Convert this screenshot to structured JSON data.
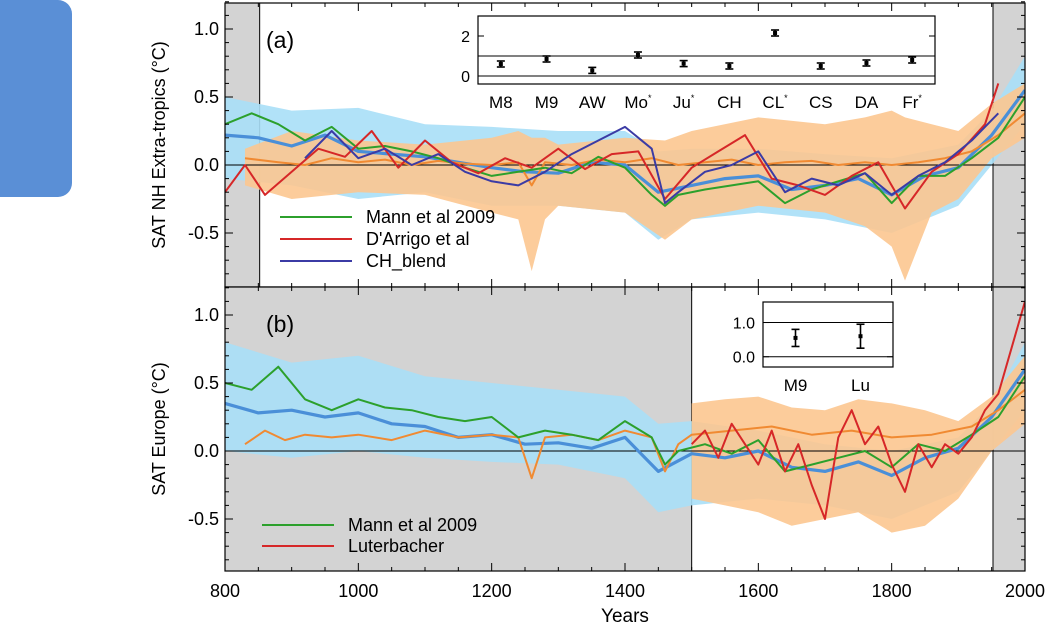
{
  "xlabel": "Years",
  "chart_data": [
    {
      "type": "line",
      "panel_label": "(a)",
      "ylabel": "SAT NH Extra-tropics (°C)",
      "xlim": [
        800,
        2000
      ],
      "ylim": [
        -0.88,
        1.2
      ],
      "xticks": [
        800,
        1000,
        1200,
        1400,
        1600,
        1800,
        2000
      ],
      "yticks": [
        1.0,
        0.5,
        0.0,
        -0.5
      ],
      "ytick_labels": [
        "1.0",
        "0.5",
        "0.0",
        "-0.5"
      ],
      "shaded_x_ranges": [
        [
          800,
          852
        ],
        [
          1952,
          2000
        ]
      ],
      "series": [
        {
          "name": "Mann et al 2009",
          "color": "#2ca02c",
          "x": [
            800,
            840,
            880,
            920,
            960,
            1000,
            1040,
            1080,
            1120,
            1160,
            1200,
            1240,
            1280,
            1320,
            1360,
            1400,
            1440,
            1460,
            1480,
            1520,
            1560,
            1600,
            1640,
            1680,
            1720,
            1760,
            1800,
            1840,
            1880,
            1920,
            1960,
            2000
          ],
          "y": [
            0.3,
            0.38,
            0.3,
            0.18,
            0.28,
            0.12,
            0.14,
            0.1,
            0.05,
            -0.02,
            -0.08,
            -0.05,
            -0.02,
            -0.06,
            0.06,
            -0.02,
            -0.22,
            -0.3,
            -0.22,
            -0.18,
            -0.15,
            -0.12,
            -0.28,
            -0.18,
            -0.12,
            -0.06,
            -0.28,
            -0.08,
            -0.08,
            0.05,
            0.2,
            0.5
          ]
        },
        {
          "name": "D'Arrigo et al",
          "color": "#d62728",
          "x": [
            800,
            830,
            860,
            900,
            940,
            980,
            1020,
            1060,
            1100,
            1140,
            1180,
            1220,
            1260,
            1300,
            1340,
            1380,
            1420,
            1460,
            1500,
            1540,
            1580,
            1620,
            1660,
            1700,
            1740,
            1780,
            1820,
            1860,
            1900,
            1940,
            1960
          ],
          "y": [
            -0.2,
            0.0,
            -0.22,
            -0.05,
            0.12,
            0.06,
            0.25,
            -0.02,
            0.18,
            0.02,
            -0.06,
            0.05,
            -0.02,
            0.12,
            -0.03,
            0.08,
            0.1,
            -0.25,
            -0.02,
            0.1,
            0.22,
            -0.1,
            -0.15,
            -0.22,
            -0.08,
            0.02,
            -0.32,
            -0.05,
            0.08,
            0.3,
            0.6
          ]
        },
        {
          "name": "CH_blend",
          "color": "#3b3ba5",
          "x": [
            920,
            960,
            1000,
            1040,
            1080,
            1120,
            1160,
            1200,
            1240,
            1280,
            1320,
            1360,
            1400,
            1440,
            1460,
            1480,
            1520,
            1560,
            1600,
            1640,
            1680,
            1720,
            1760,
            1800,
            1840,
            1880,
            1920,
            1960
          ],
          "y": [
            0.05,
            0.25,
            0.05,
            0.12,
            0.0,
            0.08,
            -0.05,
            -0.12,
            -0.15,
            -0.05,
            0.08,
            0.18,
            0.28,
            0.12,
            -0.28,
            -0.2,
            -0.05,
            0.0,
            0.1,
            -0.2,
            -0.1,
            -0.15,
            -0.06,
            -0.22,
            -0.08,
            0.02,
            0.18,
            0.38
          ]
        },
        {
          "name": "",
          "color": "#4a8fd8",
          "x": [
            800,
            850,
            900,
            950,
            1000,
            1050,
            1100,
            1150,
            1200,
            1250,
            1300,
            1350,
            1400,
            1450,
            1500,
            1550,
            1600,
            1650,
            1700,
            1750,
            1800,
            1850,
            1900,
            1950,
            2000
          ],
          "y": [
            0.22,
            0.2,
            0.14,
            0.22,
            0.1,
            0.08,
            0.06,
            0.02,
            -0.02,
            -0.05,
            -0.06,
            0.02,
            0.0,
            -0.2,
            -0.15,
            -0.1,
            -0.08,
            -0.18,
            -0.15,
            -0.1,
            -0.22,
            -0.08,
            -0.02,
            0.22,
            0.55
          ]
        },
        {
          "name": "",
          "color": "#f08a32",
          "x": [
            830,
            880,
            920,
            960,
            1000,
            1040,
            1080,
            1120,
            1160,
            1200,
            1240,
            1260,
            1280,
            1320,
            1360,
            1400,
            1440,
            1480,
            1520,
            1560,
            1600,
            1640,
            1680,
            1720,
            1760,
            1800,
            1840,
            1880,
            1920,
            1960,
            2000
          ],
          "y": [
            0.05,
            0.02,
            0.0,
            0.05,
            0.02,
            0.04,
            0.0,
            0.03,
            0.01,
            0.0,
            0.02,
            -0.15,
            0.02,
            0.0,
            0.04,
            0.02,
            0.05,
            0.0,
            0.02,
            0.04,
            0.0,
            0.02,
            0.03,
            0.0,
            0.02,
            0.0,
            0.02,
            0.05,
            0.1,
            0.22,
            0.38
          ]
        }
      ],
      "bands": [
        {
          "color": "#a9dff7",
          "x": [
            800,
            900,
            1000,
            1100,
            1200,
            1300,
            1400,
            1450,
            1500,
            1600,
            1700,
            1800,
            1900,
            1950,
            2000
          ],
          "upper": [
            0.5,
            0.4,
            0.42,
            0.3,
            0.28,
            0.25,
            0.25,
            0.1,
            0.12,
            0.12,
            0.08,
            0.05,
            0.15,
            0.4,
            0.8
          ],
          "lower": [
            -0.1,
            -0.15,
            -0.25,
            -0.2,
            -0.3,
            -0.3,
            -0.35,
            -0.55,
            -0.4,
            -0.35,
            -0.4,
            -0.5,
            -0.3,
            0.0,
            0.3
          ]
        },
        {
          "color": "#fcc690",
          "x": [
            830,
            900,
            1000,
            1100,
            1200,
            1240,
            1260,
            1280,
            1300,
            1400,
            1460,
            1500,
            1600,
            1700,
            1760,
            1800,
            1820,
            1860,
            1900,
            1950,
            2000
          ],
          "upper": [
            0.12,
            0.25,
            0.18,
            0.15,
            0.2,
            0.25,
            0.2,
            0.2,
            0.15,
            0.2,
            0.18,
            0.25,
            0.35,
            0.3,
            0.35,
            0.4,
            0.35,
            0.3,
            0.25,
            0.45,
            0.6
          ],
          "lower": [
            -0.15,
            -0.25,
            -0.2,
            -0.22,
            -0.35,
            -0.4,
            -0.78,
            -0.4,
            -0.3,
            -0.35,
            -0.55,
            -0.4,
            -0.3,
            -0.35,
            -0.45,
            -0.6,
            -0.85,
            -0.35,
            -0.25,
            0.05,
            0.2
          ]
        }
      ],
      "legend": [
        "Mann et al 2009",
        "D'Arrigo et al",
        "CH_blend"
      ],
      "inset": {
        "categories": [
          "M8",
          "M9",
          "AW",
          "Mo",
          "Ju",
          "CH",
          "CL",
          "CS",
          "DA",
          "Fr"
        ],
        "starred": [
          false,
          false,
          false,
          true,
          true,
          false,
          true,
          false,
          false,
          true
        ],
        "values": [
          0.6,
          0.85,
          0.28,
          1.05,
          0.62,
          0.5,
          2.15,
          0.5,
          0.65,
          0.8
        ],
        "errors": [
          0.15,
          0.15,
          0.15,
          0.15,
          0.15,
          0.15,
          0.15,
          0.15,
          0.15,
          0.15
        ],
        "ylim": [
          -0.4,
          3.0
        ],
        "yticks": [
          0,
          2
        ],
        "ytick_labels": [
          "0",
          "2"
        ],
        "reference_lines": [
          0,
          1
        ]
      }
    },
    {
      "type": "line",
      "panel_label": "(b)",
      "ylabel": "SAT Europe (°C)",
      "xlim": [
        800,
        2000
      ],
      "ylim": [
        -0.88,
        1.2
      ],
      "xticks": [
        800,
        1000,
        1200,
        1400,
        1600,
        1800,
        2000
      ],
      "xtick_labels": [
        "800",
        "1000",
        "1200",
        "1400",
        "1600",
        "1800",
        "2000"
      ],
      "yticks": [
        1.0,
        0.5,
        0.0,
        -0.5
      ],
      "ytick_labels": [
        "1.0",
        "0.5",
        "0.0",
        "-0.5"
      ],
      "shaded_x_ranges": [
        [
          800,
          1500
        ],
        [
          1952,
          2000
        ]
      ],
      "series": [
        {
          "name": "Mann et al 2009",
          "color": "#2ca02c",
          "x": [
            800,
            840,
            880,
            920,
            960,
            1000,
            1040,
            1080,
            1120,
            1160,
            1200,
            1240,
            1280,
            1320,
            1360,
            1400,
            1440,
            1460,
            1480,
            1520,
            1560,
            1600,
            1640,
            1680,
            1720,
            1760,
            1800,
            1840,
            1880,
            1920,
            1960,
            2000
          ],
          "y": [
            0.5,
            0.45,
            0.62,
            0.38,
            0.3,
            0.38,
            0.32,
            0.3,
            0.25,
            0.22,
            0.25,
            0.1,
            0.15,
            0.12,
            0.08,
            0.22,
            0.1,
            -0.1,
            0.0,
            0.05,
            -0.02,
            0.08,
            -0.15,
            -0.1,
            -0.05,
            0.0,
            -0.12,
            0.05,
            0.0,
            0.12,
            0.25,
            0.55
          ]
        },
        {
          "name": "Luterbacher",
          "color": "#d62728",
          "x": [
            1500,
            1520,
            1540,
            1560,
            1580,
            1600,
            1620,
            1640,
            1660,
            1680,
            1700,
            1720,
            1740,
            1760,
            1780,
            1800,
            1820,
            1840,
            1860,
            1880,
            1900,
            1920,
            1940,
            1960,
            2000
          ],
          "y": [
            0.05,
            0.15,
            -0.05,
            0.2,
            0.05,
            -0.1,
            0.15,
            -0.15,
            0.05,
            -0.25,
            -0.5,
            0.1,
            0.3,
            0.05,
            0.18,
            -0.1,
            -0.3,
            0.05,
            -0.12,
            0.05,
            -0.02,
            0.1,
            0.3,
            0.42,
            1.1
          ]
        },
        {
          "name": "",
          "color": "#4a8fd8",
          "x": [
            800,
            850,
            900,
            950,
            1000,
            1050,
            1100,
            1150,
            1200,
            1250,
            1300,
            1350,
            1400,
            1450,
            1500,
            1550,
            1600,
            1650,
            1700,
            1750,
            1800,
            1850,
            1900,
            1950,
            2000
          ],
          "y": [
            0.35,
            0.28,
            0.3,
            0.25,
            0.28,
            0.2,
            0.18,
            0.1,
            0.12,
            0.05,
            0.06,
            0.02,
            0.1,
            -0.15,
            -0.02,
            -0.05,
            0.0,
            -0.12,
            -0.15,
            -0.08,
            -0.18,
            -0.05,
            0.02,
            0.25,
            0.6
          ]
        },
        {
          "name": "",
          "color": "#f08a32",
          "x": [
            830,
            860,
            890,
            920,
            960,
            1000,
            1050,
            1100,
            1150,
            1200,
            1240,
            1260,
            1280,
            1320,
            1360,
            1400,
            1440,
            1460,
            1480,
            1500,
            1560,
            1620,
            1680,
            1740,
            1800,
            1860,
            1920,
            1960,
            2000
          ],
          "y": [
            0.05,
            0.15,
            0.08,
            0.12,
            0.1,
            0.12,
            0.08,
            0.15,
            0.1,
            0.12,
            0.1,
            -0.2,
            0.1,
            0.12,
            0.08,
            0.15,
            0.1,
            -0.15,
            0.05,
            0.12,
            0.15,
            0.18,
            0.12,
            0.15,
            0.1,
            0.12,
            0.18,
            0.3,
            0.45
          ]
        }
      ],
      "bands": [
        {
          "color": "#a9dff7",
          "x": [
            800,
            900,
            1000,
            1100,
            1200,
            1300,
            1400,
            1450,
            1500,
            1600,
            1700,
            1800,
            1900,
            1950,
            2000
          ],
          "upper": [
            0.8,
            0.65,
            0.7,
            0.55,
            0.5,
            0.45,
            0.4,
            0.2,
            0.22,
            0.15,
            0.05,
            0.0,
            0.1,
            0.35,
            0.8
          ],
          "lower": [
            0.0,
            -0.05,
            0.0,
            -0.05,
            -0.08,
            -0.1,
            -0.2,
            -0.45,
            -0.4,
            -0.35,
            -0.4,
            -0.5,
            -0.3,
            0.0,
            0.3
          ]
        },
        {
          "color": "#fcc690",
          "x": [
            1500,
            1550,
            1600,
            1650,
            1700,
            1750,
            1800,
            1850,
            1900,
            1950,
            2000
          ],
          "upper": [
            0.35,
            0.38,
            0.4,
            0.32,
            0.3,
            0.38,
            0.35,
            0.3,
            0.22,
            0.4,
            0.7
          ],
          "lower": [
            -0.35,
            -0.4,
            -0.45,
            -0.55,
            -0.5,
            -0.45,
            -0.6,
            -0.55,
            -0.35,
            0.0,
            0.2
          ]
        }
      ],
      "legend": [
        "Mann et al 2009",
        "Luterbacher"
      ],
      "inset": {
        "categories": [
          "M9",
          "Lu"
        ],
        "values": [
          0.55,
          0.6
        ],
        "errors": [
          0.25,
          0.35
        ],
        "ylim": [
          -0.3,
          1.6
        ],
        "yticks": [
          1.0,
          0.0
        ],
        "ytick_labels": [
          "1.0",
          "0.0"
        ],
        "reference_lines": [
          0,
          1
        ]
      }
    }
  ]
}
